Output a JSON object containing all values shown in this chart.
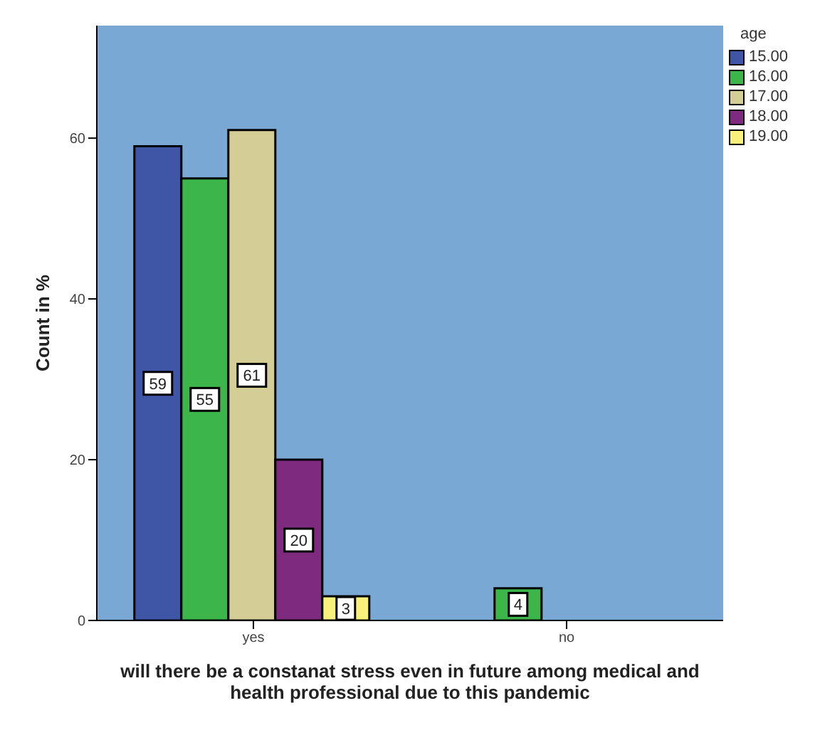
{
  "chart_data": {
    "type": "bar",
    "xlabel": "will there be a constanat stress even in future among medical and health professional due to this pandemic",
    "ylabel": "Count in %",
    "legend_title": "age",
    "categories": [
      "yes",
      "no"
    ],
    "series": [
      {
        "name": "15.00",
        "color": "#3f56a6",
        "values": [
          59,
          null
        ]
      },
      {
        "name": "16.00",
        "color": "#3cb54a",
        "values": [
          55,
          4
        ]
      },
      {
        "name": "17.00",
        "color": "#d4cd96",
        "values": [
          61,
          null
        ]
      },
      {
        "name": "18.00",
        "color": "#7e2a7e",
        "values": [
          20,
          null
        ]
      },
      {
        "name": "19.00",
        "color": "#f7f07a",
        "values": [
          3,
          null
        ]
      }
    ],
    "ylim": [
      0,
      74
    ],
    "yticks": [
      0,
      20,
      40,
      60
    ],
    "grid": false,
    "legend": "top right",
    "data_labels": true
  }
}
